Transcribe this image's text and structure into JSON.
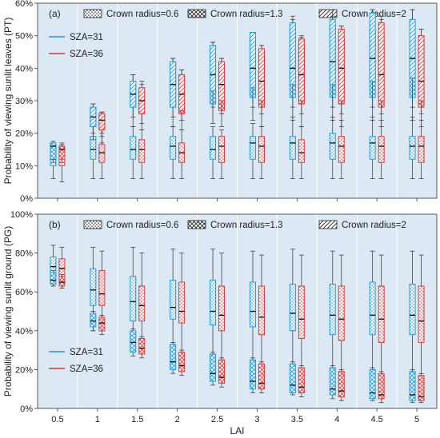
{
  "chart_data": [
    {
      "type": "box",
      "panel_label": "(a)",
      "ylabel": "Probability of viewing sunlit leaves (PT)",
      "xlabel": "",
      "ylim": [
        0,
        60
      ],
      "yticks": [
        0,
        10,
        20,
        30,
        40,
        50,
        60
      ],
      "ytick_format": "percent",
      "categories": [
        "0.5",
        "1",
        "1.5",
        "2",
        "2.5",
        "3",
        "3.5",
        "4",
        "4.5",
        "5"
      ],
      "crown_legend": [
        "Crown radius=0.6",
        "Crown radius=1.3",
        "Crown radius=2"
      ],
      "sza_legend": [
        {
          "label": "SZA=31",
          "color": "#1f9bde"
        },
        {
          "label": "SZA=36",
          "color": "#d93a3a"
        }
      ],
      "legend_position": "top",
      "series": [
        {
          "sza": "SZA=31",
          "crown": "Crown radius=0.6",
          "boxes": [
            [
              6,
              10,
              12,
              16.5,
              17
            ],
            [
              6,
              12,
              15,
              19,
              23
            ],
            [
              6,
              12,
              15,
              19,
              22
            ],
            [
              6,
              12,
              16,
              19,
              22
            ],
            [
              6,
              12,
              15,
              19,
              22
            ],
            [
              6,
              12,
              17,
              19,
              23
            ],
            [
              6,
              12,
              17,
              19,
              25
            ],
            [
              6,
              12,
              17,
              20,
              25
            ],
            [
              6,
              12,
              17,
              19,
              25
            ],
            [
              6,
              12,
              16,
              19,
              25
            ]
          ]
        },
        {
          "sza": "SZA=36",
          "crown": "Crown radius=0.6",
          "boxes": [
            [
              5,
              10,
              13,
              16,
              17
            ],
            [
              6,
              11,
              14,
              16.5,
              20
            ],
            [
              6,
              11,
              15,
              18,
              21
            ],
            [
              6,
              11,
              14,
              17,
              21
            ],
            [
              6,
              11,
              16,
              19,
              21
            ],
            [
              6,
              11,
              16,
              19,
              22
            ],
            [
              6,
              11,
              14,
              18,
              22
            ],
            [
              6,
              11,
              16,
              19,
              24
            ],
            [
              6,
              11,
              16,
              19,
              24
            ],
            [
              6,
              11,
              16,
              19,
              24
            ]
          ]
        },
        {
          "sza": "SZA=31",
          "crown": "Crown radius=1.3",
          "boxes": [
            [
              11,
              12,
              16,
              17,
              17.5
            ],
            [
              18,
              22,
              24.5,
              28,
              29
            ],
            [
              22,
              28,
              32,
              35,
              38
            ],
            [
              22,
              28,
              36,
              42,
              43
            ],
            [
              23,
              29,
              39,
              47,
              48
            ],
            [
              24,
              31,
              41,
              49,
              51
            ],
            [
              24,
              31,
              42,
              52,
              55
            ],
            [
              24,
              31,
              42,
              53,
              56
            ],
            [
              24,
              31,
              41,
              52,
              58
            ],
            [
              24,
              31,
              38,
              50,
              58
            ]
          ]
        },
        {
          "sza": "SZA=36",
          "crown": "Crown radius=1.3",
          "boxes": [
            [
              11,
              12,
              15,
              16,
              16.5
            ],
            [
              17,
              21,
              24,
              26,
              26.5
            ],
            [
              21,
              26,
              29,
              33,
              35
            ],
            [
              21,
              26,
              32,
              37,
              39.5
            ],
            [
              22,
              27,
              33,
              40,
              43
            ],
            [
              22,
              28,
              36,
              44,
              47
            ],
            [
              22,
              29,
              38,
              47,
              49.5
            ],
            [
              22,
              29,
              38,
              49,
              53
            ],
            [
              22,
              28,
              37,
              50,
              55
            ],
            [
              22,
              28,
              36,
              49,
              52
            ]
          ]
        },
        {
          "sza": "SZA=31",
          "crown": "Crown radius=2",
          "boxes": [
            [
              null,
              null,
              null,
              null,
              null
            ],
            [
              20,
              22,
              25,
              28,
              29
            ],
            [
              25,
              28,
              32,
              36,
              38
            ],
            [
              25,
              28,
              35,
              42,
              43
            ],
            [
              28,
              33,
              38,
              47,
              48
            ],
            [
              28,
              34,
              40,
              51,
              51
            ],
            [
              28,
              35,
              40,
              54,
              56
            ],
            [
              28,
              35,
              42,
              55,
              58
            ],
            [
              28,
              36,
              43,
              57,
              58
            ],
            [
              28,
              37,
              43,
              55,
              58
            ]
          ]
        },
        {
          "sza": "SZA=36",
          "crown": "Crown radius=2",
          "boxes": [
            [
              null,
              null,
              null,
              null,
              null
            ],
            [
              19,
              21,
              24,
              26,
              26.5
            ],
            [
              23,
              26,
              30,
              34,
              36
            ],
            [
              24,
              27,
              32,
              38,
              39.5
            ],
            [
              26,
              30,
              35,
              42,
              43
            ],
            [
              26,
              30,
              36,
              46,
              47
            ],
            [
              26,
              30,
              38,
              49,
              50
            ],
            [
              26,
              30,
              40,
              52,
              53
            ],
            [
              26,
              30,
              38,
              54,
              56
            ],
            [
              26,
              30,
              36,
              50,
              52
            ]
          ]
        }
      ]
    },
    {
      "type": "box",
      "panel_label": "(b)",
      "ylabel": "Probability of viewing sunlit ground (PG)",
      "xlabel": "LAI",
      "ylim": [
        0,
        100
      ],
      "yticks": [
        0,
        20,
        40,
        60,
        80,
        100
      ],
      "ytick_format": "percent",
      "categories": [
        "0.5",
        "1",
        "1.5",
        "2",
        "2.5",
        "3",
        "3.5",
        "4",
        "4.5",
        "5"
      ],
      "crown_legend": [
        "Crown radius=0.6",
        "Crown radius=1.3",
        "Crown radius=2"
      ],
      "sza_legend": [
        {
          "label": "SZA=31",
          "color": "#1f9bde"
        },
        {
          "label": "SZA=36",
          "color": "#d93a3a"
        }
      ],
      "legend_position": "top",
      "series": [
        {
          "sza": "SZA=31",
          "crown": "Crown radius=0.6",
          "boxes": [
            [
              63,
              68,
              73,
              78,
              84
            ],
            [
              40,
              53,
              61,
              72,
              83
            ],
            [
              30,
              45,
              55,
              68,
              83
            ],
            [
              25,
              46,
              52,
              66,
              82
            ],
            [
              22,
              43,
              50,
              66,
              82
            ],
            [
              20,
              42,
              50,
              65,
              81
            ],
            [
              18,
              40,
              49,
              64,
              82
            ],
            [
              18,
              38,
              48,
              64,
              81
            ],
            [
              16,
              38,
              48,
              65,
              81
            ],
            [
              16,
              38,
              48,
              64,
              81
            ]
          ]
        },
        {
          "sza": "SZA=36",
          "crown": "Crown radius=0.6",
          "boxes": [
            [
              62,
              67,
              72,
              77,
              83
            ],
            [
              40,
              53,
              59,
              71,
              81
            ],
            [
              30,
              45,
              53,
              63,
              80
            ],
            [
              24,
              44,
              50,
              65,
              80
            ],
            [
              20,
              40,
              48,
              63,
              80
            ],
            [
              18,
              38,
              47,
              63,
              79
            ],
            [
              16,
              36,
              46,
              63,
              79
            ],
            [
              16,
              35,
              46,
              63,
              79
            ],
            [
              14,
              34,
              46,
              63,
              79
            ],
            [
              14,
              34,
              45,
              63,
              79
            ]
          ]
        },
        {
          "sza": "SZA=31",
          "crown": "Crown radius=1.3",
          "boxes": [
            [
              63,
              64,
              66,
              70,
              71
            ],
            [
              40,
              42,
              45,
              49,
              50
            ],
            [
              27,
              29,
              34,
              40,
              41
            ],
            [
              18,
              20,
              24,
              33,
              34
            ],
            [
              12,
              14,
              18,
              28,
              29
            ],
            [
              8,
              10,
              14,
              25,
              26
            ],
            [
              7,
              8,
              12,
              23,
              24
            ],
            [
              5,
              7,
              10,
              21,
              22
            ],
            [
              4,
              5,
              8,
              20,
              21
            ],
            [
              3,
              4,
              7,
              19,
              20
            ]
          ]
        },
        {
          "sza": "SZA=36",
          "crown": "Crown radius=1.3",
          "boxes": [
            [
              62,
              63,
              65,
              68,
              69
            ],
            [
              38,
              40,
              44,
              47,
              48
            ],
            [
              26,
              28,
              31,
              36,
              37
            ],
            [
              17,
              19,
              22,
              29,
              30
            ],
            [
              11,
              13,
              16,
              25,
              26
            ],
            [
              8,
              10,
              13,
              23,
              24
            ],
            [
              6,
              8,
              11,
              21,
              22
            ],
            [
              4,
              6,
              9,
              19,
              20
            ],
            [
              3,
              5,
              7,
              18,
              19
            ],
            [
              3,
              4,
              6,
              17,
              18
            ]
          ]
        },
        {
          "sza": "SZA=31",
          "crown": "Crown radius=2",
          "boxes": [
            [
              null,
              null,
              null,
              null,
              null
            ],
            [
              null,
              null,
              null,
              null,
              null
            ],
            [
              null,
              null,
              null,
              null,
              null
            ],
            [
              null,
              null,
              null,
              null,
              null
            ],
            [
              null,
              null,
              null,
              null,
              null
            ],
            [
              null,
              null,
              null,
              null,
              null
            ],
            [
              null,
              null,
              null,
              null,
              null
            ],
            [
              null,
              null,
              null,
              null,
              null
            ],
            [
              null,
              null,
              null,
              null,
              null
            ],
            [
              null,
              null,
              null,
              null,
              null
            ]
          ]
        },
        {
          "sza": "SZA=36",
          "crown": "Crown radius=2",
          "boxes": [
            [
              null,
              null,
              null,
              null,
              null
            ],
            [
              null,
              null,
              null,
              null,
              null
            ],
            [
              null,
              null,
              null,
              null,
              null
            ],
            [
              null,
              null,
              null,
              null,
              null
            ],
            [
              null,
              null,
              null,
              null,
              null
            ],
            [
              null,
              null,
              null,
              null,
              null
            ],
            [
              null,
              null,
              null,
              null,
              null
            ],
            [
              null,
              null,
              null,
              null,
              null
            ],
            [
              null,
              null,
              null,
              null,
              null
            ],
            [
              null,
              null,
              null,
              null,
              null
            ]
          ]
        }
      ]
    }
  ]
}
